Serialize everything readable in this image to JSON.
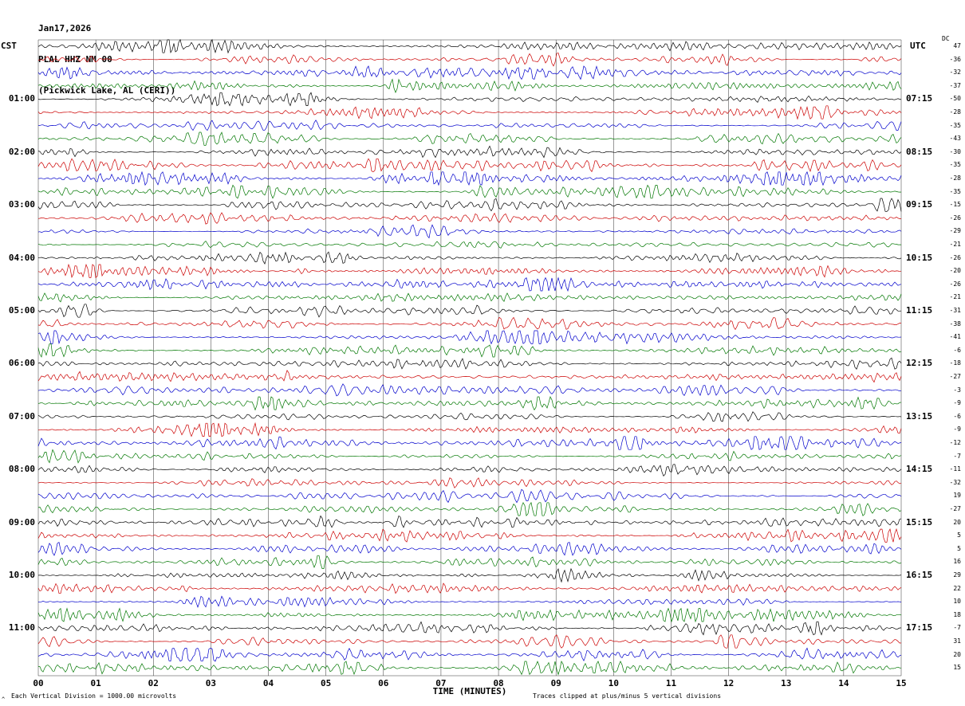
{
  "header": {
    "date": "Jan17,2026",
    "station": "PLAL HHZ NM 00",
    "location": "(Pickwick Lake, AL (CERI))"
  },
  "footer": {
    "corner_mark": "^"
  },
  "chart_data": {
    "type": "line",
    "subtype": "helicorder_seismogram",
    "title": "PLAL HHZ NM 00 (Pickwick Lake, AL (CERI)) Jan17,2026",
    "left_time_scale": "CST",
    "right_time_scale": "UTC",
    "x_axis": {
      "label": "TIME (MINUTES)",
      "ticks": [
        "00",
        "01",
        "02",
        "03",
        "04",
        "05",
        "06",
        "07",
        "08",
        "09",
        "10",
        "11",
        "12",
        "13",
        "14",
        "15"
      ],
      "minutes_per_line": 15
    },
    "grid": true,
    "trace_color_cycle": [
      "#000000",
      "#cc0000",
      "#0000cc",
      "#007700"
    ],
    "amplitude_scale": "Each Vertical Division = 1000.00 microvolts",
    "clipping": "Traces clipped at plus/minus 5 vertical divisions",
    "dc_offset_label": "DC",
    "rows": [
      {
        "cst": "",
        "utc": "",
        "dc": 47
      },
      {
        "cst": "",
        "utc": "",
        "dc": -36
      },
      {
        "cst": "",
        "utc": "",
        "dc": -32
      },
      {
        "cst": "",
        "utc": "",
        "dc": -37
      },
      {
        "cst": "01:00",
        "utc": "07:15",
        "dc": -50
      },
      {
        "cst": "",
        "utc": "",
        "dc": -28
      },
      {
        "cst": "",
        "utc": "",
        "dc": -35
      },
      {
        "cst": "",
        "utc": "",
        "dc": -43
      },
      {
        "cst": "02:00",
        "utc": "08:15",
        "dc": -30
      },
      {
        "cst": "",
        "utc": "",
        "dc": -35
      },
      {
        "cst": "",
        "utc": "",
        "dc": -28
      },
      {
        "cst": "",
        "utc": "",
        "dc": -35
      },
      {
        "cst": "03:00",
        "utc": "09:15",
        "dc": -15
      },
      {
        "cst": "",
        "utc": "",
        "dc": -26
      },
      {
        "cst": "",
        "utc": "",
        "dc": -29
      },
      {
        "cst": "",
        "utc": "",
        "dc": -21
      },
      {
        "cst": "04:00",
        "utc": "10:15",
        "dc": -26
      },
      {
        "cst": "",
        "utc": "",
        "dc": -20
      },
      {
        "cst": "",
        "utc": "",
        "dc": -26
      },
      {
        "cst": "",
        "utc": "",
        "dc": -21
      },
      {
        "cst": "05:00",
        "utc": "11:15",
        "dc": -31
      },
      {
        "cst": "",
        "utc": "",
        "dc": -38
      },
      {
        "cst": "",
        "utc": "",
        "dc": -41
      },
      {
        "cst": "",
        "utc": "",
        "dc": -6
      },
      {
        "cst": "06:00",
        "utc": "12:15",
        "dc": -18
      },
      {
        "cst": "",
        "utc": "",
        "dc": -27
      },
      {
        "cst": "",
        "utc": "",
        "dc": -3
      },
      {
        "cst": "",
        "utc": "",
        "dc": -9
      },
      {
        "cst": "07:00",
        "utc": "13:15",
        "dc": -6
      },
      {
        "cst": "",
        "utc": "",
        "dc": -9
      },
      {
        "cst": "",
        "utc": "",
        "dc": -12
      },
      {
        "cst": "",
        "utc": "",
        "dc": -7
      },
      {
        "cst": "08:00",
        "utc": "14:15",
        "dc": -11
      },
      {
        "cst": "",
        "utc": "",
        "dc": -32
      },
      {
        "cst": "",
        "utc": "",
        "dc": 19
      },
      {
        "cst": "",
        "utc": "",
        "dc": -27
      },
      {
        "cst": "09:00",
        "utc": "15:15",
        "dc": 20
      },
      {
        "cst": "",
        "utc": "",
        "dc": 5
      },
      {
        "cst": "",
        "utc": "",
        "dc": 5
      },
      {
        "cst": "",
        "utc": "",
        "dc": 16
      },
      {
        "cst": "10:00",
        "utc": "16:15",
        "dc": 29
      },
      {
        "cst": "",
        "utc": "",
        "dc": 22
      },
      {
        "cst": "",
        "utc": "",
        "dc": 10
      },
      {
        "cst": "",
        "utc": "",
        "dc": 18
      },
      {
        "cst": "11:00",
        "utc": "17:15",
        "dc": -7
      },
      {
        "cst": "",
        "utc": "",
        "dc": 31
      },
      {
        "cst": "",
        "utc": "",
        "dc": 20
      },
      {
        "cst": "",
        "utc": "",
        "dc": 15
      }
    ]
  }
}
